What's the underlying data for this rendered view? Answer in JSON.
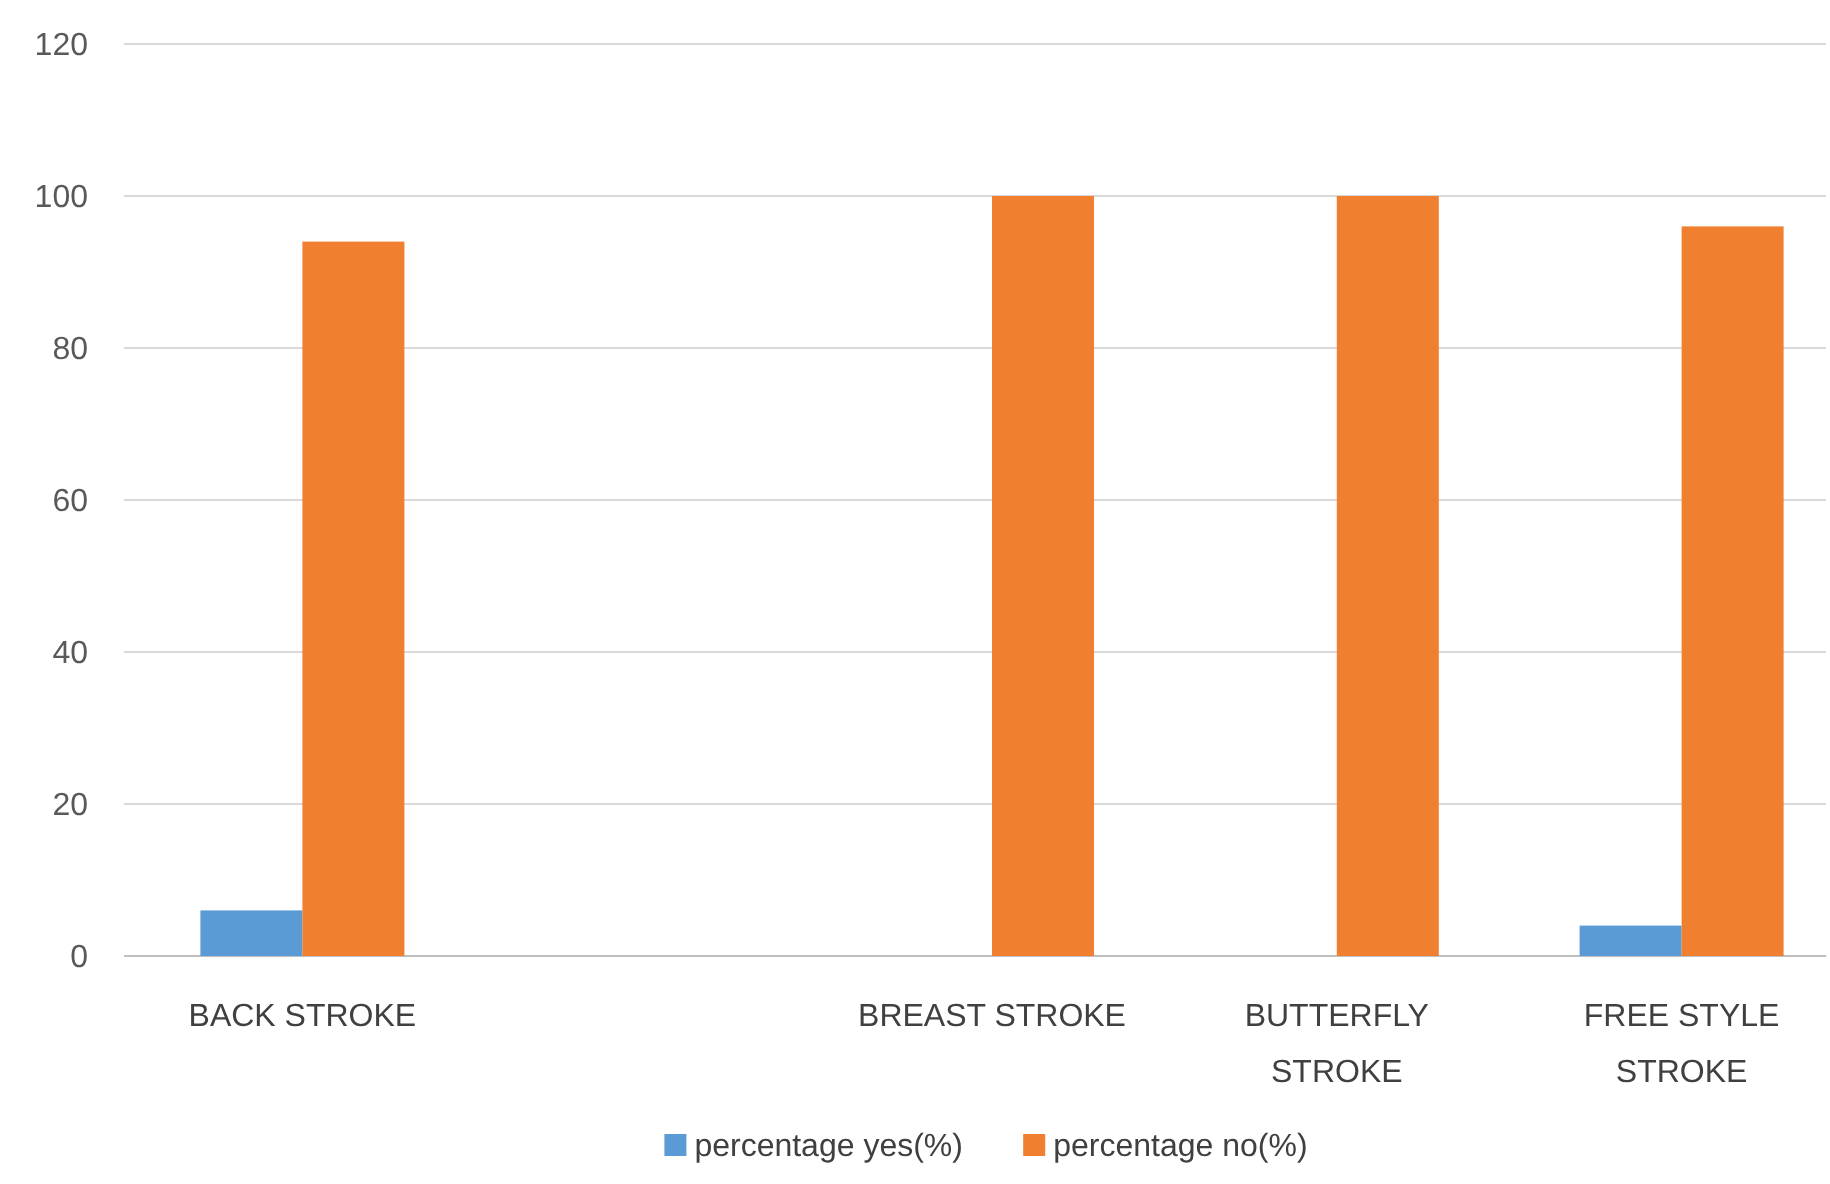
{
  "chart_data": {
    "type": "bar",
    "categories": [
      "BACK STROKE",
      null,
      "BREAST STROKE",
      "BUTTERFLY STROKE",
      "FREE STYLE STROKE"
    ],
    "series": [
      {
        "name": "percentage yes(%)",
        "color": "#5b9bd5",
        "values": [
          6,
          null,
          0,
          0,
          4
        ]
      },
      {
        "name": "percentage no(%)",
        "color": "#f07f2f",
        "values": [
          94,
          null,
          100,
          100,
          96
        ]
      }
    ],
    "ylim": [
      0,
      120
    ],
    "yticks": [
      0,
      20,
      40,
      60,
      80,
      100,
      120
    ],
    "grid": "y",
    "legend": "bottom"
  }
}
